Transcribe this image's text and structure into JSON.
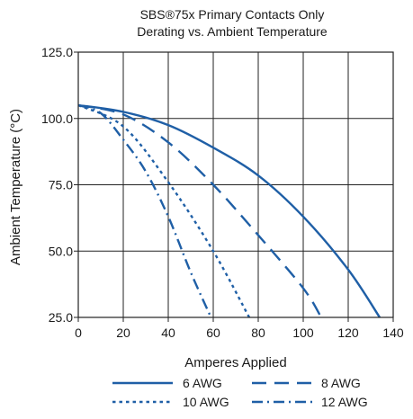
{
  "chart_data": {
    "type": "line",
    "title_line1": "SBS®75x Primary Contacts Only",
    "title_line2": "Derating vs. Ambient Temperature",
    "xlabel": "Amperes Applied",
    "ylabel": "Ambient Temperature (°C)",
    "xlim": [
      0,
      140
    ],
    "ylim": [
      25,
      125
    ],
    "xticks": [
      "0",
      "20",
      "40",
      "60",
      "80",
      "100",
      "120",
      "140"
    ],
    "yticks": [
      "25.0",
      "50.0",
      "75.0",
      "100.0",
      "125.0"
    ],
    "grid": true,
    "line_color": "#1f5fa6",
    "series": [
      {
        "name": "6 AWG",
        "dash": "solid",
        "x": [
          0,
          20,
          40,
          60,
          80,
          100,
          120,
          134
        ],
        "y": [
          105,
          102.5,
          97.5,
          89,
          78.5,
          63,
          43,
          25
        ]
      },
      {
        "name": "8 AWG",
        "dash": "dash",
        "x": [
          0,
          20,
          40,
          60,
          80,
          100,
          108
        ],
        "y": [
          105,
          101.5,
          91,
          75,
          56,
          36,
          25
        ]
      },
      {
        "name": "10 AWG",
        "dash": "dot",
        "x": [
          0,
          20,
          40,
          60,
          76
        ],
        "y": [
          105,
          97,
          76,
          50,
          25
        ]
      },
      {
        "name": "12 AWG",
        "dash": "dashdot",
        "x": [
          0,
          10,
          20,
          30,
          40,
          50,
          59
        ],
        "y": [
          105,
          102,
          92,
          80,
          63,
          42,
          25
        ]
      }
    ]
  }
}
